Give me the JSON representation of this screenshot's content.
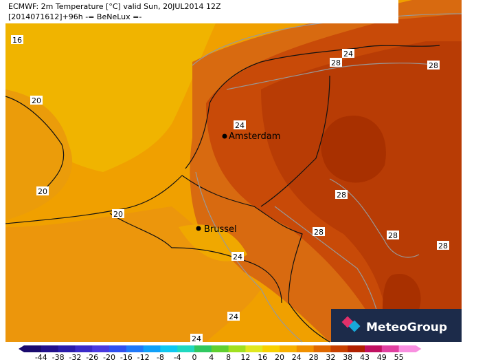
{
  "header": {
    "line1": "ECMWF: 2m Temperature [°C] valid Sun, 20JUL2014 12Z",
    "line2": "[2014071612]+96h  -= BeNeLux =-"
  },
  "contour_labels": [
    "16",
    "20",
    "20",
    "20",
    "24",
    "28",
    "28",
    "24",
    "28",
    "28",
    "28",
    "28",
    "24",
    "24",
    "24"
  ],
  "cities": [
    "Amsterdam",
    "Brussel"
  ],
  "colorbar": {
    "labels": [
      "-44",
      "-38",
      "-32",
      "-26",
      "-20",
      "-16",
      "-12",
      "-8",
      "-4",
      "0",
      "4",
      "8",
      "12",
      "16",
      "20",
      "24",
      "28",
      "32",
      "38",
      "43",
      "49",
      "55"
    ]
  },
  "logo": "MeteoGroup"
}
